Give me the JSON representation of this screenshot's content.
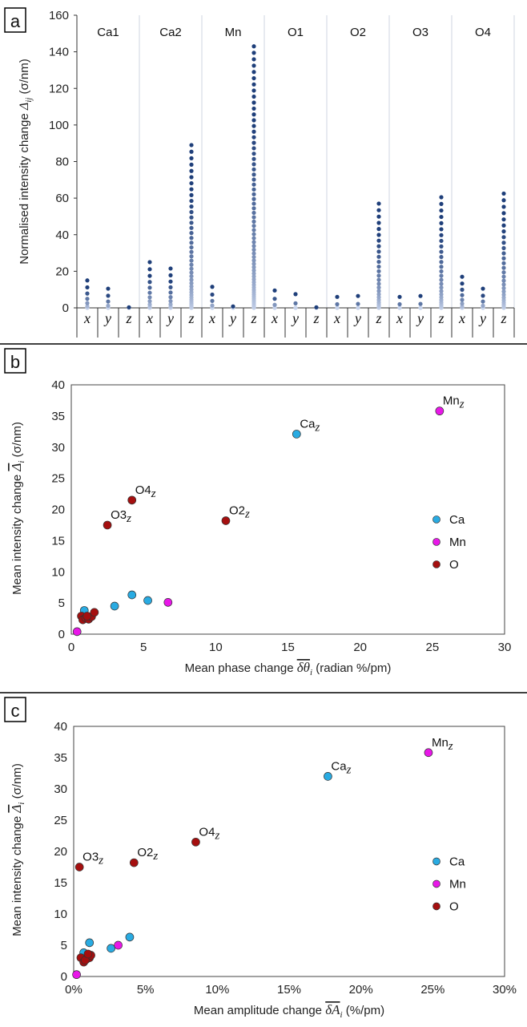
{
  "panel_labels": [
    "a",
    "b",
    "c"
  ],
  "colors": {
    "Ca": "#29abe2",
    "Mn": "#e817e8",
    "O": "#a50f0f",
    "strip_dark": "#1f3f7a",
    "strip_light": "#c8d4ec"
  },
  "chart_data": [
    {
      "type": "scatter",
      "panel": "a",
      "ylabel_main": "Normalised intensity change",
      "ylabel_sym": "Δ",
      "ylabel_sub": "ij",
      "ylabel_unit": "(σ/nm)",
      "ylim": [
        0,
        160
      ],
      "yticks": [
        "0",
        "20",
        "40",
        "60",
        "80",
        "100",
        "120",
        "140",
        "160"
      ],
      "grid": "vertical",
      "atoms": [
        "Ca1",
        "Ca2",
        "Mn",
        "O1",
        "O2",
        "O3",
        "O4"
      ],
      "components": [
        "x",
        "y",
        "z"
      ],
      "series": [
        {
          "atom": "Ca1",
          "max": [
            15,
            10.5,
            0.3
          ]
        },
        {
          "atom": "Ca2",
          "max": [
            25,
            21.5,
            89
          ]
        },
        {
          "atom": "Mn",
          "max": [
            11.5,
            0.8,
            143
          ]
        },
        {
          "atom": "O1",
          "max": [
            9.5,
            7.5,
            0.3
          ]
        },
        {
          "atom": "O2",
          "max": [
            6,
            6.5,
            57
          ]
        },
        {
          "atom": "O3",
          "max": [
            6,
            6.5,
            60.5
          ]
        },
        {
          "atom": "O4",
          "max": [
            17,
            10.5,
            62.5
          ]
        }
      ]
    },
    {
      "type": "scatter",
      "panel": "b",
      "xlabel_main": "Mean phase change",
      "xlabel_sym": "δθ",
      "xlabel_sub": "i",
      "xlabel_unit": "(radian %/pm)",
      "ylabel_main": "Mean intensity change",
      "ylabel_sym": "Δ",
      "ylabel_sub": "i",
      "ylabel_unit": "(σ/nm)",
      "xlim": [
        0,
        30
      ],
      "ylim": [
        0,
        40
      ],
      "xticks": [
        "0",
        "5",
        "10",
        "15",
        "20",
        "25",
        "30"
      ],
      "yticks": [
        "0",
        "5",
        "10",
        "15",
        "20",
        "25",
        "30",
        "35",
        "40"
      ],
      "legend": [
        "Ca",
        "Mn",
        "O"
      ],
      "legend_position": "right",
      "series": [
        {
          "name": "Ca",
          "points": [
            [
              15.6,
              32.1
            ],
            [
              0.9,
              3.8
            ],
            [
              3.0,
              4.5
            ],
            [
              4.2,
              6.3
            ],
            [
              5.3,
              5.4
            ]
          ]
        },
        {
          "name": "Mn",
          "points": [
            [
              25.5,
              35.8
            ],
            [
              6.7,
              5.1
            ],
            [
              0.4,
              0.4
            ]
          ]
        },
        {
          "name": "O",
          "points": [
            [
              10.7,
              18.2
            ],
            [
              4.2,
              21.5
            ],
            [
              2.5,
              17.5
            ],
            [
              0.7,
              2.9
            ],
            [
              0.8,
              2.3
            ],
            [
              1.0,
              2.6
            ],
            [
              1.2,
              2.4
            ],
            [
              1.4,
              2.8
            ],
            [
              1.6,
              3.5
            ],
            [
              1.1,
              2.9
            ]
          ]
        }
      ],
      "annotations": [
        {
          "base": "Mn",
          "sub": "z",
          "x": 25.5,
          "y": 35.8
        },
        {
          "base": "Ca",
          "sub": "z",
          "x": 15.6,
          "y": 32.1
        },
        {
          "base": "O4",
          "sub": "z",
          "x": 4.2,
          "y": 21.5
        },
        {
          "base": "O3",
          "sub": "z",
          "x": 2.5,
          "y": 17.5
        },
        {
          "base": "O2",
          "sub": "z",
          "x": 10.7,
          "y": 18.2
        }
      ]
    },
    {
      "type": "scatter",
      "panel": "c",
      "xlabel_main": "Mean amplitude change",
      "xlabel_sym": "δA",
      "xlabel_sub": "i",
      "xlabel_unit": "(%/pm)",
      "ylabel_main": "Mean intensity change",
      "ylabel_sym": "Δ",
      "ylabel_sub": "i",
      "ylabel_unit": "(σ/nm)",
      "xlim": [
        0,
        30
      ],
      "ylim": [
        0,
        40
      ],
      "xticks": [
        "0%",
        "5%",
        "10%",
        "15%",
        "20%",
        "25%",
        "30%"
      ],
      "yticks": [
        "0",
        "5",
        "10",
        "15",
        "20",
        "25",
        "30",
        "35",
        "40"
      ],
      "legend": [
        "Ca",
        "Mn",
        "O"
      ],
      "legend_position": "right",
      "series": [
        {
          "name": "Ca",
          "points": [
            [
              17.7,
              32.0
            ],
            [
              0.7,
              3.8
            ],
            [
              1.1,
              5.4
            ],
            [
              2.6,
              4.5
            ],
            [
              3.9,
              6.3
            ]
          ]
        },
        {
          "name": "Mn",
          "points": [
            [
              24.7,
              35.8
            ],
            [
              3.1,
              5.0
            ],
            [
              0.2,
              0.3
            ]
          ]
        },
        {
          "name": "O",
          "points": [
            [
              8.5,
              21.5
            ],
            [
              4.2,
              18.2
            ],
            [
              0.4,
              17.5
            ],
            [
              0.5,
              3.0
            ],
            [
              0.7,
              2.3
            ],
            [
              0.9,
              2.8
            ],
            [
              1.1,
              3.0
            ],
            [
              1.2,
              3.4
            ],
            [
              0.8,
              2.6
            ],
            [
              1.0,
              3.6
            ]
          ]
        }
      ],
      "annotations": [
        {
          "base": "Mn",
          "sub": "z",
          "x": 24.7,
          "y": 35.8
        },
        {
          "base": "Ca",
          "sub": "z",
          "x": 17.7,
          "y": 32.0
        },
        {
          "base": "O4",
          "sub": "z",
          "x": 8.5,
          "y": 21.5
        },
        {
          "base": "O2",
          "sub": "z",
          "x": 4.2,
          "y": 18.2
        },
        {
          "base": "O3",
          "sub": "z",
          "x": 0.4,
          "y": 17.5
        }
      ]
    }
  ]
}
